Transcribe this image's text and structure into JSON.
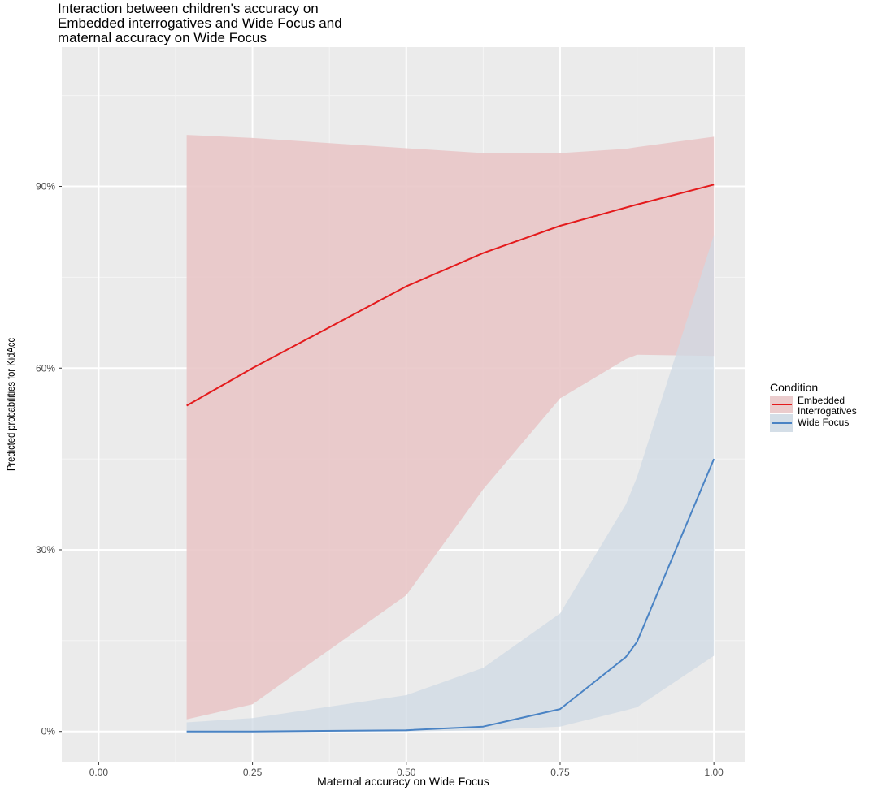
{
  "chart_data": {
    "type": "line",
    "title_lines": [
      "Interaction between children's accuracy on",
      "Embedded interrogatives and Wide Focus and",
      "maternal accuracy on Wide Focus"
    ],
    "xlabel": "Maternal accuracy on Wide Focus",
    "ylabel": "Predicted probabilities for KidAcc",
    "xlim": [
      -0.06,
      1.05
    ],
    "ylim": [
      -0.05,
      1.13
    ],
    "x_ticks": [
      0,
      0.25,
      0.5,
      0.75,
      1
    ],
    "x_tick_labels": [
      "0.00",
      "0.25",
      "0.50",
      "0.75",
      "1.00"
    ],
    "y_ticks": [
      0,
      0.3,
      0.6,
      0.9
    ],
    "y_tick_labels": [
      "0%",
      "30%",
      "60%",
      "90%"
    ],
    "grid": true,
    "legend": {
      "title": "Condition",
      "position": "right",
      "entries": [
        {
          "label_lines": [
            "Embedded",
            "Interrogatives"
          ]
        },
        {
          "label_lines": [
            "Wide Focus"
          ]
        }
      ]
    },
    "series": [
      {
        "color": "#e41a1c",
        "fill": "#e9c6c8",
        "x": [
          0.143,
          0.25,
          0.5,
          0.625,
          0.75,
          0.857,
          0.875,
          1.0
        ],
        "y": [
          0.538,
          0.6,
          0.735,
          0.79,
          0.835,
          0.865,
          0.87,
          0.903
        ],
        "lower": [
          0.02,
          0.045,
          0.225,
          0.4,
          0.55,
          0.615,
          0.622,
          0.62
        ],
        "upper": [
          0.985,
          0.98,
          0.963,
          0.955,
          0.955,
          0.962,
          0.965,
          0.982
        ]
      },
      {
        "color": "#4a83c4",
        "fill": "#cfdae4",
        "x": [
          0.143,
          0.25,
          0.5,
          0.625,
          0.75,
          0.857,
          0.875,
          1.0
        ],
        "y": [
          0.0,
          0.0,
          0.002,
          0.008,
          0.037,
          0.123,
          0.148,
          0.45
        ],
        "lower": [
          0.0,
          0.0,
          0.0,
          0.002,
          0.008,
          0.035,
          0.04,
          0.125
        ],
        "upper": [
          0.015,
          0.022,
          0.06,
          0.105,
          0.195,
          0.375,
          0.42,
          0.82
        ]
      }
    ]
  }
}
